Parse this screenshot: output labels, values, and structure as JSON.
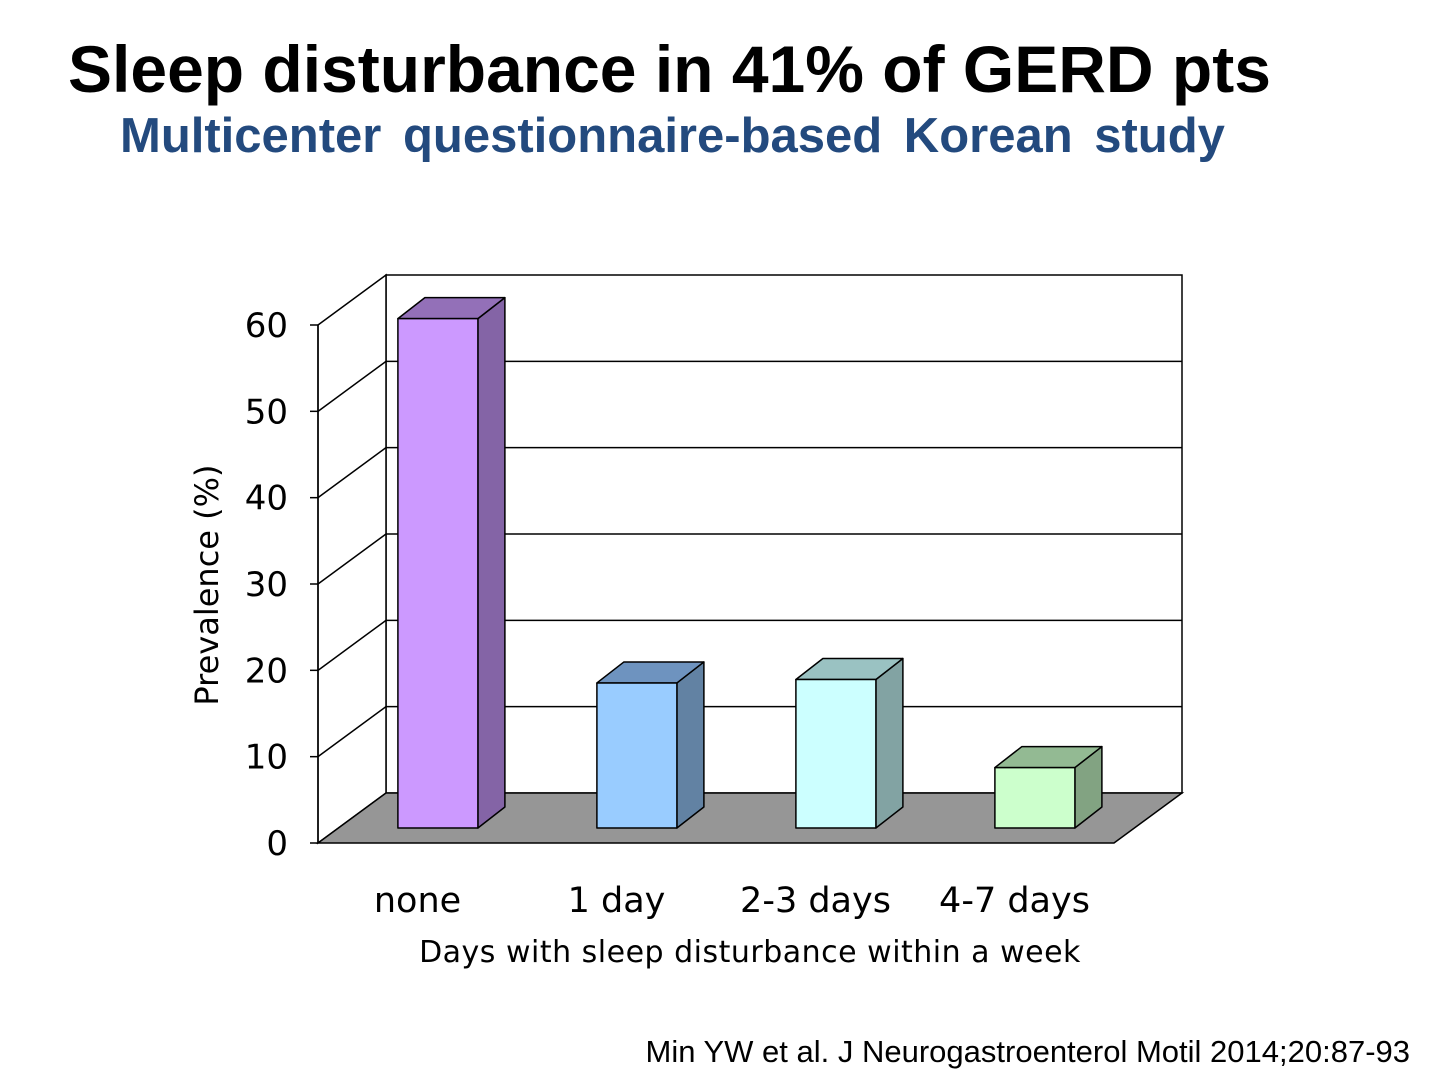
{
  "slide": {
    "title": "Sleep disturbance in 41% of GERD pts",
    "subtitle": "Multicenter questionnaire-based Korean study",
    "citation": "Min YW et al. J Neurogastroenterol Motil 2014;20:87-93"
  },
  "colors": {
    "title": "#000000",
    "subtitle": "#234A7E",
    "floor": "#969696"
  },
  "chart_data": {
    "type": "bar",
    "three_d": true,
    "categories": [
      "none",
      "1 day",
      "2-3 days",
      "4-7 days"
    ],
    "values": [
      59,
      16.8,
      17.2,
      7
    ],
    "xlabel": "Days with sleep disturbance within a week",
    "ylabel": "Prevalence (%)",
    "ylim": [
      0,
      60
    ],
    "yticks": [
      0,
      10,
      20,
      30,
      40,
      50,
      60
    ],
    "grid": true,
    "bar_colors": [
      {
        "front": "#CC99FF",
        "top": "#9370B8",
        "side": "#8464A6"
      },
      {
        "front": "#99CCFF",
        "top": "#6E93BF",
        "side": "#6282A3"
      },
      {
        "front": "#CCFFFF",
        "top": "#9AC2C2",
        "side": "#82A3A3"
      },
      {
        "front": "#CCFFCC",
        "top": "#93BA93",
        "side": "#82A382"
      }
    ]
  }
}
